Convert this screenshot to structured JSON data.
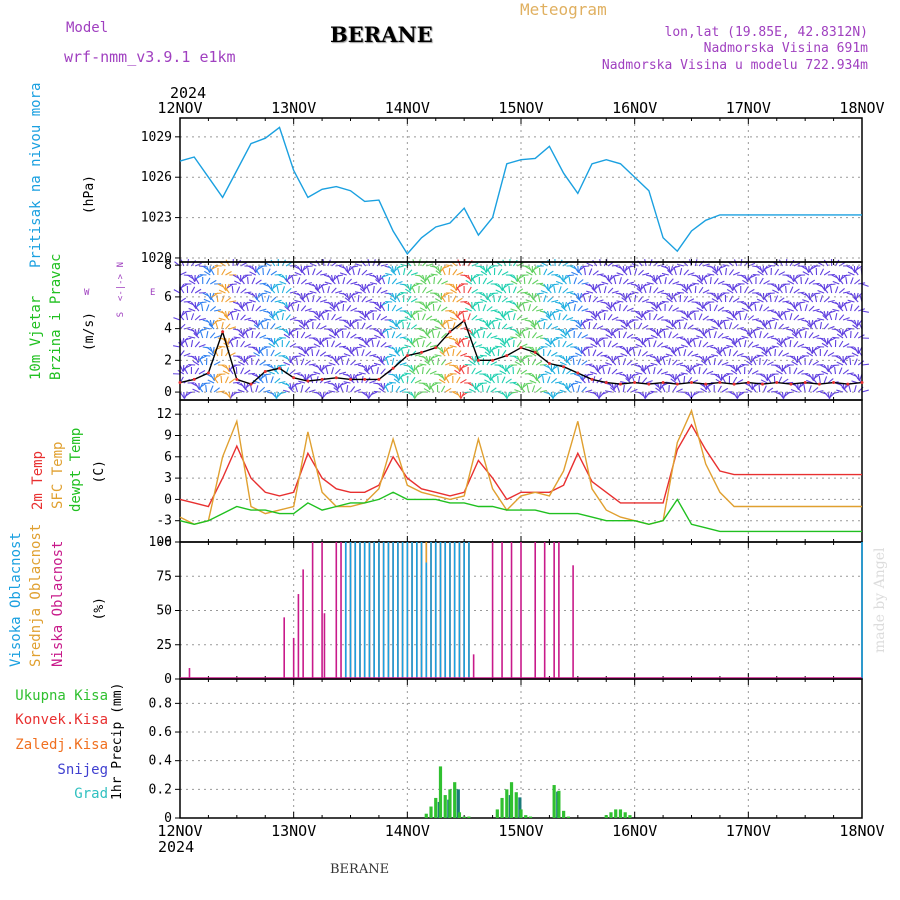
{
  "header": {
    "model_label": "Model",
    "model_name": "wrf-nmm_v3.9.1 e1km",
    "title": "BERANE",
    "meteogram": "Meteogram",
    "lonlat": "lon,lat (19.85E, 42.8312N)",
    "altitude": "Nadmorska Visina 691m",
    "model_altitude": "Nadmorska Visina u modelu 722.934m",
    "year_top": "2024",
    "year_bottom": "2024",
    "footer_station": "BERANE",
    "watermark": "made by Angel"
  },
  "colors": {
    "pressure": "#1aa0e0",
    "temp2m": "#e83030",
    "sfctemp": "#e0a030",
    "dewpt": "#20c020",
    "high_cloud": "#1aa0e0",
    "mid_cloud": "#e0a030",
    "low_cloud": "#c81a8a",
    "total_precip": "#30c030",
    "conv_precip": "#e83030",
    "frozen_precip": "#f07020",
    "snow": "#4040d0",
    "graupel": "#30c0c0",
    "precip_bar": "#1a7a7a",
    "purple_text": "#a040c0",
    "gold_text": "#e0b060"
  },
  "axis_labels": {
    "pressure": [
      "Pritisak na nivou mora",
      "(hPa)"
    ],
    "wind": [
      "10m Vjetar",
      "Brzina i Pravac",
      "(m/s)"
    ],
    "wind_compass": [
      "N",
      "<-|->",
      "S",
      "W",
      "E"
    ],
    "temp": [
      "2m Temp",
      "SFC Temp",
      "dewpt Temp",
      "(C)"
    ],
    "cloud": [
      "Visoka Oblacnost",
      "Srednja Oblacnost",
      "Niska Oblacnost",
      "(%)"
    ],
    "precip_unit": "1hr Precip (mm)",
    "precip_legend": [
      "Ukupna Kisa",
      "Konvek.Kisa",
      "Zaledj.Kisa",
      "Snijeg",
      "Grad"
    ]
  },
  "chart_data": [
    {
      "type": "line",
      "panel": "pressure",
      "x_unit": "hours since 12NOV 00UTC",
      "x_ticks": [
        "12NOV",
        "13NOV",
        "14NOV",
        "15NOV",
        "16NOV",
        "17NOV",
        "18NOV"
      ],
      "ylim": [
        1019.7,
        1030.4
      ],
      "y_ticks": [
        1020,
        1023,
        1026,
        1029
      ],
      "grid": true,
      "series": [
        {
          "key": "pressure",
          "x": [
            0,
            3,
            6,
            9,
            12,
            15,
            18,
            21,
            24,
            27,
            30,
            33,
            36,
            39,
            42,
            45,
            48,
            51,
            54,
            57,
            60,
            63,
            66,
            69,
            72,
            75,
            78,
            81,
            84,
            87,
            90,
            93,
            96,
            99,
            102,
            105,
            108,
            111,
            114,
            117,
            120,
            123,
            126,
            129,
            132,
            135,
            138,
            141,
            144
          ],
          "y": [
            1027.2,
            1027.5,
            1026.0,
            1024.5,
            1026.5,
            1028.5,
            1028.9,
            1029.7,
            1026.5,
            1024.5,
            1025.1,
            1025.3,
            1025.0,
            1024.2,
            1024.3,
            1022.0,
            1020.3,
            1021.5,
            1022.3,
            1022.6,
            1023.7,
            1021.7,
            1023.0,
            1027.0,
            1027.3,
            1027.4,
            1028.3,
            1026.3,
            1024.8,
            1027.0,
            1027.3,
            1027.0,
            1026.0,
            1025.0,
            1021.5,
            1020.5,
            1022.0,
            1022.8,
            1023.2,
            1023.2,
            1023.2,
            1023.2,
            1023.2,
            1023.2,
            1023.2,
            1023.2,
            1023.2,
            1023.2,
            1023.2
          ]
        }
      ]
    },
    {
      "type": "line",
      "panel": "wind",
      "x_ticks": [
        "12NOV",
        "13NOV",
        "14NOV",
        "15NOV",
        "16NOV",
        "17NOV",
        "18NOV"
      ],
      "ylim": [
        -0.5,
        8.2
      ],
      "y_ticks": [
        0,
        2,
        4,
        6,
        8
      ],
      "grid": true,
      "series": [
        {
          "key": "wind_speed",
          "x": [
            0,
            3,
            6,
            9,
            12,
            15,
            18,
            21,
            24,
            27,
            30,
            33,
            36,
            39,
            42,
            45,
            48,
            51,
            54,
            57,
            60,
            63,
            66,
            69,
            72,
            75,
            78,
            81,
            84,
            87,
            90,
            93,
            96,
            99,
            102,
            105,
            108,
            111,
            114,
            117,
            120,
            123,
            126,
            129,
            132,
            135,
            138,
            141,
            144
          ],
          "y": [
            0.6,
            0.8,
            1.2,
            3.8,
            0.8,
            0.5,
            1.3,
            1.5,
            0.9,
            0.7,
            0.8,
            0.9,
            0.8,
            0.8,
            0.8,
            1.5,
            2.3,
            2.5,
            2.8,
            3.8,
            4.5,
            2.0,
            2.0,
            2.3,
            2.8,
            2.5,
            1.8,
            1.6,
            1.2,
            0.8,
            0.6,
            0.5,
            0.6,
            0.5,
            0.6,
            0.5,
            0.6,
            0.5,
            0.6,
            0.5,
            0.6,
            0.5,
            0.6,
            0.5,
            0.6,
            0.5,
            0.6,
            0.5,
            0.6
          ]
        }
      ]
    },
    {
      "type": "line",
      "panel": "temperature",
      "x_ticks": [
        "12NOV",
        "13NOV",
        "14NOV",
        "15NOV",
        "16NOV",
        "17NOV",
        "18NOV"
      ],
      "ylim": [
        -6,
        14
      ],
      "y_ticks": [
        -6,
        -3,
        0,
        3,
        6,
        9,
        12
      ],
      "grid": true,
      "series": [
        {
          "key": "temp2m",
          "x": [
            0,
            3,
            6,
            9,
            12,
            15,
            18,
            21,
            24,
            27,
            30,
            33,
            36,
            39,
            42,
            45,
            48,
            51,
            54,
            57,
            60,
            63,
            66,
            69,
            72,
            75,
            78,
            81,
            84,
            87,
            90,
            93,
            96,
            99,
            102,
            105,
            108,
            111,
            114,
            117,
            120,
            123,
            126,
            129,
            132,
            135,
            138,
            141,
            144
          ],
          "y": [
            0.0,
            -0.5,
            -1.0,
            3.0,
            7.5,
            3.0,
            1.0,
            0.5,
            1.0,
            6.5,
            3.0,
            1.5,
            1.0,
            1.0,
            2.0,
            6.0,
            3.0,
            1.5,
            1.0,
            0.5,
            1.0,
            5.5,
            3.0,
            0.0,
            1.0,
            1.0,
            1.0,
            2.0,
            6.5,
            2.5,
            1.0,
            -0.5,
            -0.5,
            -0.5,
            -0.5,
            7.0,
            10.5,
            7.0,
            4.0,
            3.5,
            3.5,
            3.5,
            3.5,
            3.5,
            3.5,
            3.5,
            3.5,
            3.5,
            3.5
          ]
        },
        {
          "key": "sfctemp",
          "x": [
            0,
            3,
            6,
            9,
            12,
            15,
            18,
            21,
            24,
            27,
            30,
            33,
            36,
            39,
            42,
            45,
            48,
            51,
            54,
            57,
            60,
            63,
            66,
            69,
            72,
            75,
            78,
            81,
            84,
            87,
            90,
            93,
            96,
            99,
            102,
            105,
            108,
            111,
            114,
            117,
            120,
            123,
            126,
            129,
            132,
            135,
            138,
            141,
            144
          ],
          "y": [
            -2.5,
            -3.5,
            -3.0,
            6.0,
            11.0,
            -1.0,
            -2.0,
            -1.5,
            -1.0,
            9.5,
            1.0,
            -1.0,
            -1.0,
            -0.5,
            1.5,
            8.5,
            2.0,
            1.0,
            0.5,
            0.0,
            0.5,
            8.5,
            1.5,
            -1.5,
            0.5,
            1.0,
            0.5,
            4.0,
            11.0,
            1.5,
            -1.5,
            -2.5,
            -3.0,
            -3.5,
            -3.0,
            8.0,
            12.5,
            5.0,
            1.0,
            -1.0,
            -1.0,
            -1.0,
            -1.0,
            -1.0,
            -1.0,
            -1.0,
            -1.0,
            -1.0,
            -1.0
          ]
        },
        {
          "key": "dewpt",
          "x": [
            0,
            3,
            6,
            9,
            12,
            15,
            18,
            21,
            24,
            27,
            30,
            33,
            36,
            39,
            42,
            45,
            48,
            51,
            54,
            57,
            60,
            63,
            66,
            69,
            72,
            75,
            78,
            81,
            84,
            87,
            90,
            93,
            96,
            99,
            102,
            105,
            108,
            111,
            114,
            117,
            120,
            123,
            126,
            129,
            132,
            135,
            138,
            141,
            144
          ],
          "y": [
            -3.0,
            -3.5,
            -3.0,
            -2.0,
            -1.0,
            -1.5,
            -1.5,
            -2.0,
            -2.0,
            -0.5,
            -1.5,
            -1.0,
            -0.5,
            -0.5,
            0.0,
            1.0,
            0.0,
            0.0,
            0.0,
            -0.5,
            -0.5,
            -1.0,
            -1.0,
            -1.5,
            -1.5,
            -1.5,
            -2.0,
            -2.0,
            -2.0,
            -2.5,
            -3.0,
            -3.0,
            -3.0,
            -3.5,
            -3.0,
            0.0,
            -3.5,
            -4.0,
            -4.5,
            -4.5,
            -4.5,
            -4.5,
            -4.5,
            -4.5,
            -4.5,
            -4.5,
            -4.5,
            -4.5,
            -4.5
          ]
        }
      ]
    },
    {
      "type": "bar",
      "panel": "cloud",
      "x_ticks": [
        "12NOV",
        "13NOV",
        "14NOV",
        "15NOV",
        "16NOV",
        "17NOV",
        "18NOV"
      ],
      "ylim": [
        0,
        100
      ],
      "y_ticks": [
        0,
        25,
        50,
        75,
        100
      ],
      "grid": true,
      "series": [
        {
          "key": "low_cloud",
          "x": [
            2,
            22,
            24,
            25,
            26,
            28,
            30,
            30.5,
            33,
            34,
            35,
            36,
            37,
            38,
            39,
            40,
            41,
            42,
            43,
            44,
            45,
            46,
            47,
            48,
            49,
            50,
            51,
            52,
            53,
            54,
            55,
            56,
            57,
            58,
            59,
            60,
            61,
            62,
            66,
            68,
            70,
            72,
            75,
            77,
            79,
            80,
            83
          ],
          "y": [
            8,
            45,
            30,
            62,
            80,
            100,
            100,
            48,
            100,
            100,
            100,
            100,
            100,
            100,
            100,
            100,
            100,
            100,
            100,
            100,
            100,
            100,
            100,
            100,
            100,
            100,
            100,
            100,
            100,
            100,
            100,
            100,
            100,
            100,
            100,
            100,
            100,
            18,
            100,
            100,
            100,
            100,
            100,
            100,
            100,
            100,
            83
          ]
        },
        {
          "key": "mid_cloud",
          "x": [
            36,
            37,
            38,
            39,
            40,
            41,
            42,
            43,
            44,
            45,
            46,
            47,
            48,
            49,
            50,
            51,
            52,
            53,
            54,
            55,
            56,
            57,
            58,
            59,
            60,
            61
          ],
          "y": [
            100,
            100,
            100,
            100,
            100,
            100,
            100,
            100,
            100,
            100,
            100,
            100,
            100,
            100,
            100,
            100,
            100,
            100,
            100,
            100,
            100,
            100,
            100,
            100,
            100,
            100
          ]
        },
        {
          "key": "high_cloud",
          "x": [
            35,
            36,
            37,
            38,
            39,
            40,
            41,
            42,
            43,
            44,
            45,
            46,
            47,
            48,
            49,
            50,
            51,
            52,
            53,
            54,
            55,
            56,
            57,
            58,
            59,
            60,
            61,
            144
          ],
          "y": [
            100,
            100,
            100,
            100,
            100,
            100,
            100,
            100,
            100,
            100,
            100,
            100,
            100,
            100,
            100,
            100,
            100,
            85,
            100,
            100,
            100,
            100,
            100,
            100,
            100,
            100,
            100,
            100
          ]
        }
      ]
    },
    {
      "type": "bar",
      "panel": "precip",
      "x_ticks": [
        "12NOV",
        "13NOV",
        "14NOV",
        "15NOV",
        "16NOV",
        "17NOV",
        "18NOV"
      ],
      "ylim": [
        0,
        0.97
      ],
      "y_ticks": [
        0,
        0.2,
        0.4,
        0.6,
        0.8
      ],
      "grid": true,
      "series": [
        {
          "key": "total_precip",
          "x": [
            52,
            53,
            54,
            55,
            56,
            57,
            58,
            59,
            60,
            61,
            67,
            68,
            69,
            70,
            71,
            72,
            73,
            74,
            79,
            80,
            81,
            82,
            90,
            91,
            92,
            93,
            94,
            95
          ],
          "y": [
            0.03,
            0.08,
            0.14,
            0.36,
            0.16,
            0.2,
            0.25,
            0.04,
            0.01,
            0.01,
            0.06,
            0.14,
            0.2,
            0.25,
            0.18,
            0.06,
            0.02,
            0.01,
            0.23,
            0.19,
            0.05,
            0.01,
            0.02,
            0.04,
            0.06,
            0.06,
            0.04,
            0.02
          ]
        }
      ]
    }
  ]
}
